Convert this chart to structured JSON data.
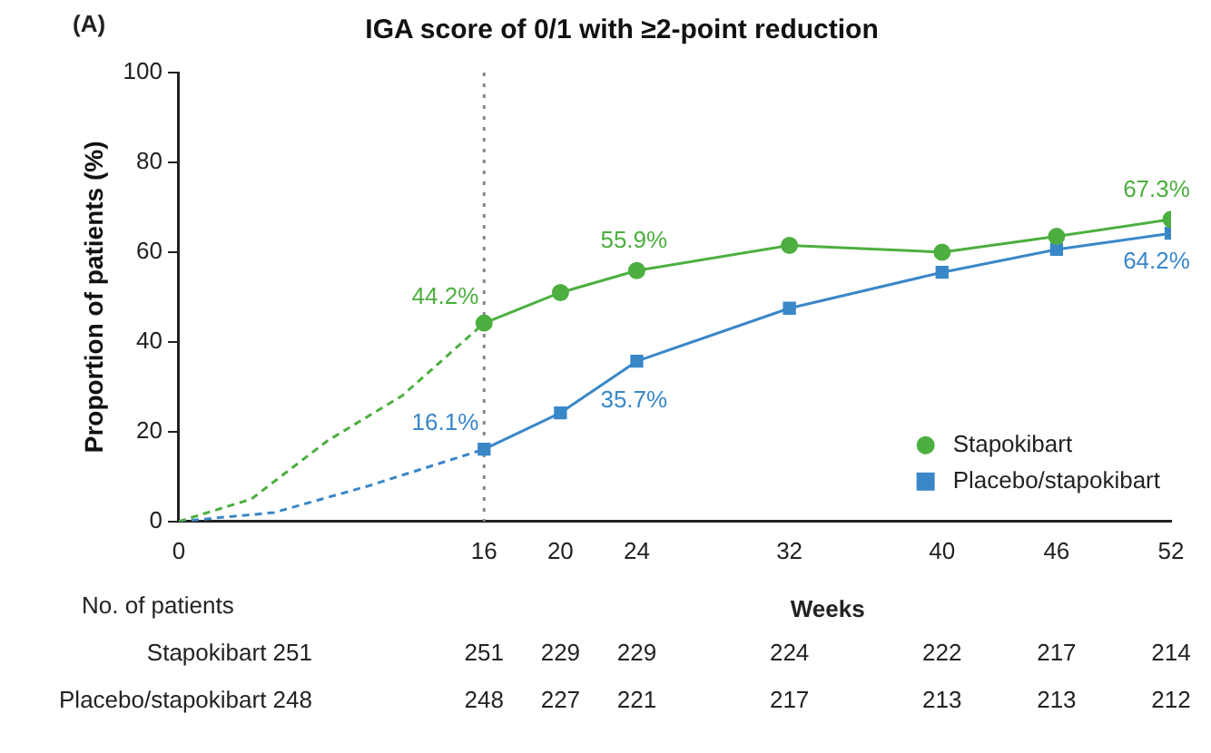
{
  "chart_data": {
    "type": "line",
    "title": "IGA score of 0/1 with ≥2-point reduction",
    "xlabel": "Weeks",
    "ylabel": "Proportion of patients (%)",
    "xlim": [
      0,
      52
    ],
    "xticks": [
      0,
      16,
      20,
      24,
      32,
      40,
      46,
      52
    ],
    "ylim": [
      0,
      100
    ],
    "yticks": [
      0,
      20,
      40,
      60,
      80,
      100
    ],
    "grid": false,
    "legend": "bottom right",
    "series": [
      {
        "name": "Stapokibart",
        "color": "#4caf3f",
        "marker": "circle",
        "line_style": "solid",
        "x": [
          16,
          20,
          24,
          32,
          40,
          46,
          52
        ],
        "values": [
          44.2,
          51,
          55.9,
          61.5,
          60,
          63.5,
          67.3
        ],
        "value_labels": [
          "44.2%",
          null,
          "55.9%",
          null,
          null,
          null,
          "67.3%"
        ]
      },
      {
        "name": "Placebo/stapokibart",
        "color": "#3a87c8",
        "marker": "square",
        "line_style": "solid",
        "x": [
          16,
          20,
          24,
          32,
          40,
          46,
          52
        ],
        "values": [
          16.1,
          24.2,
          35.7,
          47.5,
          55.5,
          60.6,
          64.2
        ],
        "value_labels": [
          "16.1%",
          null,
          "35.7%",
          null,
          null,
          null,
          "64.2%"
        ]
      },
      {
        "color": "#4caf3f",
        "marker": "none",
        "line_style": "dashed",
        "x": [
          0,
          3.8,
          7.8,
          11.7,
          16
        ],
        "values": [
          0,
          5,
          18,
          28,
          44.2
        ]
      },
      {
        "color": "#3a87c8",
        "marker": "none",
        "line_style": "dashed",
        "x": [
          0,
          5,
          10,
          16
        ],
        "values": [
          0,
          2,
          8,
          16.1
        ]
      }
    ],
    "ref_lines": [
      {
        "axis": "x",
        "value": 16,
        "color": "#888888",
        "line_style": "dotted"
      }
    ],
    "annotations": [
      "(A)",
      "No. of patients",
      "Stapokibart 251",
      "251",
      "229",
      "229",
      "224",
      "222",
      "217",
      "214",
      "Placebo/stapokibart 248",
      "248",
      "227",
      "221",
      "217",
      "213",
      "213",
      "212"
    ]
  }
}
